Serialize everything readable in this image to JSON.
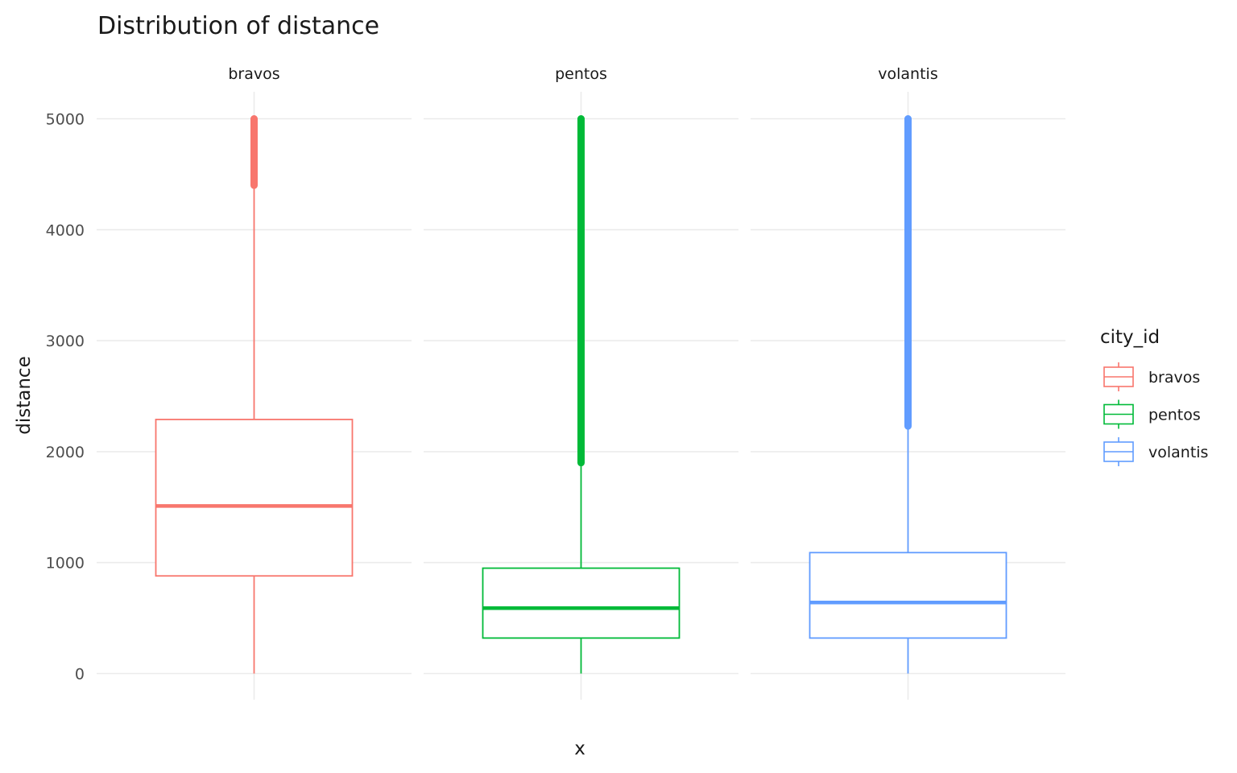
{
  "chart_data": {
    "type": "boxplot",
    "title": "Distribution of distance",
    "xlabel": "x",
    "ylabel": "distance",
    "ylim": [
      -220,
      5240
    ],
    "yticks": [
      0,
      1000,
      2000,
      3000,
      4000,
      5000
    ],
    "ytick_labels": [
      "0",
      "1000",
      "2000",
      "3000",
      "4000",
      "5000"
    ],
    "facets": [
      "bravos",
      "pentos",
      "volantis"
    ],
    "grid": true,
    "legend": {
      "title": "city_id",
      "position": "right",
      "entries": [
        "bravos",
        "pentos",
        "volantis"
      ]
    },
    "series": [
      {
        "name": "bravos",
        "color": "#F8766D",
        "whisker_low": 0,
        "q1": 880,
        "median": 1510,
        "q3": 2290,
        "whisker_high": 4400,
        "outlier_min": 4400,
        "outlier_max": 5000
      },
      {
        "name": "pentos",
        "color": "#00BA38",
        "whisker_low": 0,
        "q1": 320,
        "median": 590,
        "q3": 950,
        "whisker_high": 1900,
        "outlier_min": 1900,
        "outlier_max": 5000
      },
      {
        "name": "volantis",
        "color": "#619CFF",
        "whisker_low": 0,
        "q1": 320,
        "median": 640,
        "q3": 1090,
        "whisker_high": 2230,
        "outlier_min": 2230,
        "outlier_max": 5000
      }
    ]
  }
}
